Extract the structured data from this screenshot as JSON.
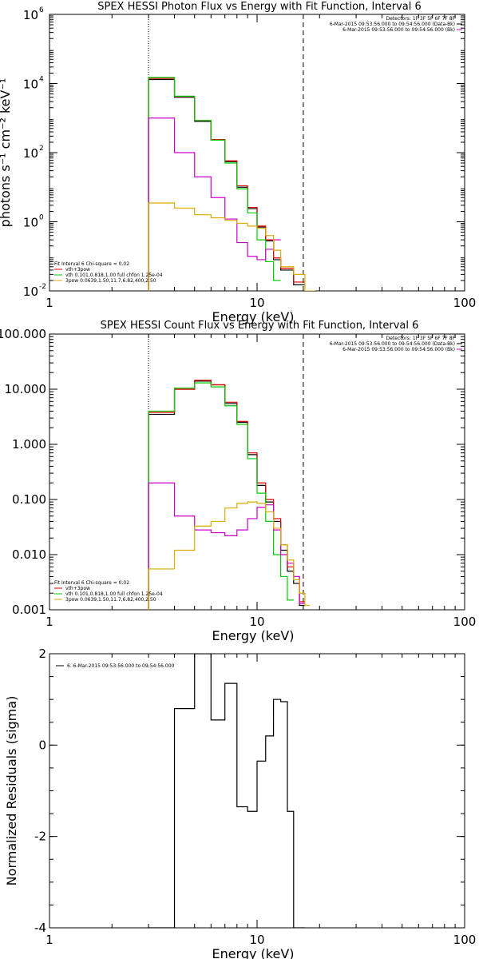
{
  "chart_data": [
    {
      "type": "line",
      "title": "SPEX HESSI Photon Flux vs Energy with Fit Function, Interval 6",
      "xlabel": "Energy (keV)",
      "ylabel": "photons s⁻¹ cm⁻² keV⁻¹",
      "xscale": "log",
      "yscale": "log",
      "xlim": [
        1,
        100
      ],
      "ylim": [
        0.01,
        1000000
      ],
      "xticks": [
        "1",
        "10",
        "100"
      ],
      "yticks": [
        {
          "value": 0.01,
          "base": "10",
          "exp": "-2"
        },
        {
          "value": 1,
          "base": "10",
          "exp": "0"
        },
        {
          "value": 100,
          "base": "10",
          "exp": "2"
        },
        {
          "value": 10000,
          "base": "10",
          "exp": "4"
        },
        {
          "value": 1000000,
          "base": "10",
          "exp": "6"
        }
      ],
      "vlines": [
        {
          "x": 3.0,
          "style": "dotted"
        },
        {
          "x": 16.7,
          "style": "dashed"
        }
      ],
      "legend_top_right": [
        {
          "text": "Detectors: 1F 3F 5F 6F 7F 8F",
          "color": ""
        },
        {
          "text": "6-Mar-2015 09:53:56.000 to 09:54:56.000 (Data-Bk)",
          "color": "#000000"
        },
        {
          "text": "6-Mar-2015 09:53:56.000 to 09:54:56.000 (Bk)",
          "color": "#cc00cc"
        }
      ],
      "legend_bottom_left": [
        {
          "text": "Fit Interval 6   Chi-square = 0.02",
          "color": ""
        },
        {
          "text": "vth+3pow",
          "color": "#dd0000"
        },
        {
          "text": "vth 0.101,0.818,1.00  full chfon 1.25e-04",
          "color": "#00cc00"
        },
        {
          "text": "3pow 0.0639,1.50,11.7,6.82,400,2.50",
          "color": "#ddaa00"
        }
      ],
      "bin_edges": [
        3.0,
        3.5,
        4.0,
        4.5,
        5.0,
        5.5,
        6.0,
        6.5,
        7.0,
        7.5,
        8.0,
        8.5,
        9.0,
        9.5,
        10.0,
        10.5,
        11.0,
        11.5,
        12.0,
        12.5,
        13.0,
        14.0,
        15.0,
        16.0,
        17.0,
        18.0,
        19.0
      ],
      "series": [
        {
          "name": "6-Mar-2015 09:53:56.000 to 09:54:56.000 (Data-Bk)",
          "color": "#000000",
          "values": [
            13000,
            13000,
            4000,
            4000,
            800,
            800,
            230,
            230,
            55,
            55,
            10,
            10,
            2.4,
            2.4,
            0.7,
            0.7,
            0.28,
            0.28,
            0.08,
            0.08,
            0.04,
            0.04,
            0.015,
            0.015,
            null,
            null
          ]
        },
        {
          "name": "vth+3pow",
          "color": "#dd0000",
          "values": [
            14000,
            14000,
            4200,
            4200,
            850,
            850,
            240,
            240,
            58,
            58,
            11,
            11,
            2.6,
            2.6,
            0.75,
            0.75,
            0.3,
            0.3,
            0.09,
            0.09,
            0.045,
            0.045,
            0.018,
            0.018,
            null,
            null
          ]
        },
        {
          "name": "vth 0.101,0.818,1.00  full chfon 1.25e-04",
          "color": "#00cc00",
          "values": [
            15000,
            15000,
            4300,
            4300,
            850,
            850,
            230,
            230,
            50,
            50,
            9,
            9,
            1.8,
            1.8,
            0.3,
            0.3,
            0.07,
            0.07,
            0.02,
            0.02,
            null,
            null,
            null,
            null,
            null,
            null
          ]
        },
        {
          "name": "(Bk)",
          "color": "#cc00cc",
          "values": [
            1000,
            1000,
            100,
            100,
            20,
            20,
            5,
            5,
            1.2,
            1.2,
            0.25,
            0.25,
            0.1,
            0.1,
            0.08,
            0.08,
            0.16,
            0.16,
            0.3,
            0.3,
            null,
            null,
            null,
            null,
            null,
            null
          ]
        },
        {
          "name": "3pow 0.0639,1.50,11.7,6.82,400,2.50",
          "color": "#ddaa00",
          "values": [
            3.5,
            3.5,
            2.5,
            2.5,
            1.6,
            1.6,
            1.3,
            1.3,
            1.1,
            1.1,
            0.9,
            0.9,
            0.75,
            0.75,
            0.65,
            0.65,
            0.4,
            0.4,
            0.15,
            0.15,
            0.05,
            0.05,
            0.03,
            0.03,
            0.01,
            0.01
          ]
        }
      ]
    },
    {
      "type": "line",
      "title": "SPEX HESSI Count Flux vs Energy with Fit Function, Interval 6",
      "xlabel": "Energy (keV)",
      "ylabel": "",
      "xscale": "log",
      "yscale": "log",
      "xlim": [
        1,
        100
      ],
      "ylim": [
        0.001,
        100
      ],
      "xticks": [
        "1",
        "10",
        "100"
      ],
      "yticks": [
        {
          "value": 0.001,
          "label": "0.001"
        },
        {
          "value": 0.01,
          "label": "0.010"
        },
        {
          "value": 0.1,
          "label": "0.100"
        },
        {
          "value": 1,
          "label": "1.000"
        },
        {
          "value": 10,
          "label": "10.000"
        },
        {
          "value": 100,
          "label": "100.000"
        }
      ],
      "vlines": [
        {
          "x": 3.0,
          "style": "dotted"
        },
        {
          "x": 16.7,
          "style": "dashed"
        }
      ],
      "legend_top_right": [
        {
          "text": "Detectors: 1F 3F 5F 6F 7F 8F",
          "color": ""
        },
        {
          "text": "6-Mar-2015 09:53:56.000 to 09:54:56.000 (Data-Bk)",
          "color": "#000000"
        },
        {
          "text": "6-Mar-2015 09:53:56.000 to 09:54:56.000 (Bk)",
          "color": "#cc00cc"
        }
      ],
      "legend_bottom_left": [
        {
          "text": "Fit Interval 6   Chi-square = 0.02",
          "color": ""
        },
        {
          "text": "vth+3pow",
          "color": "#dd0000"
        },
        {
          "text": "vth 0.101,0.818,1.00  full chfon 1.25e-04",
          "color": "#00cc00"
        },
        {
          "text": "3pow 0.0639,1.50,11.7,6.82,400,2.50",
          "color": "#ddaa00"
        }
      ],
      "bin_edges": [
        3.0,
        4.0,
        5.0,
        6.0,
        7.0,
        8.0,
        9.0,
        10.0,
        11.0,
        12.0,
        13.0,
        14.0,
        15.0,
        16.0,
        17.0,
        18.0
      ],
      "series": [
        {
          "name": "6-Mar-2015 09:53:56.000 to 09:54:56.000 (Data-Bk)",
          "color": "#000000",
          "values": [
            3.5,
            10,
            14,
            12,
            5.5,
            2.5,
            0.65,
            0.18,
            0.09,
            0.04,
            0.012,
            0.005,
            0.003,
            0.0012,
            null
          ]
        },
        {
          "name": "vth+3pow",
          "color": "#dd0000",
          "values": [
            3.8,
            10,
            14.5,
            12,
            5.8,
            2.6,
            0.7,
            0.2,
            0.1,
            0.045,
            0.015,
            0.006,
            0.004,
            0.0014,
            null
          ]
        },
        {
          "name": "vth 0.101,0.818,1.00  full chfon 1.25e-04",
          "color": "#00cc00",
          "values": [
            4,
            10.5,
            13,
            11,
            5,
            2.3,
            0.55,
            0.13,
            0.04,
            0.01,
            0.004,
            0.0015,
            null,
            null,
            null
          ]
        },
        {
          "name": "(Bk)",
          "color": "#cc00cc",
          "values": [
            0.2,
            0.05,
            0.028,
            0.025,
            0.022,
            0.028,
            0.045,
            0.072,
            0.08,
            0.028,
            0.01,
            0.007,
            0.004,
            0.0013,
            null
          ]
        },
        {
          "name": "3pow 0.0639,1.50,11.7,6.82,400,2.50",
          "color": "#ddaa00",
          "values": [
            0.0055,
            0.012,
            0.033,
            0.04,
            0.07,
            0.085,
            0.09,
            0.085,
            0.06,
            0.03,
            0.015,
            0.008,
            0.0035,
            0.002,
            0.0012
          ]
        }
      ]
    },
    {
      "type": "line",
      "title": "",
      "xlabel": "Energy (keV)",
      "ylabel": "Normalized Residuals (sigma)",
      "xscale": "log",
      "yscale": "linear",
      "xlim": [
        1,
        100
      ],
      "ylim": [
        -4,
        2
      ],
      "xticks": [
        "1",
        "10",
        "100"
      ],
      "yticks": [
        {
          "value": -4,
          "label": "-4"
        },
        {
          "value": -2,
          "label": "-2"
        },
        {
          "value": 0,
          "label": "0"
        },
        {
          "value": 2,
          "label": "2"
        }
      ],
      "legend_top_left": [
        {
          "text": "6.  6-Mar-2015 09:53:56.000 to 09:54:56.000",
          "color": "#000000"
        }
      ],
      "bin_edges": [
        3.0,
        4.0,
        5.0,
        6.0,
        7.0,
        8.0,
        9.0,
        10.0,
        11.0,
        12.0,
        13.0,
        14.0,
        15.0,
        16.0,
        17.0
      ],
      "series": [
        {
          "name": "6.  6-Mar-2015 09:53:56.000 to 09:54:56.000",
          "color": "#000000",
          "values": [
            -4.0,
            0.8,
            2.0,
            0.55,
            1.35,
            -1.35,
            -1.45,
            -0.35,
            0.2,
            1.0,
            0.95,
            -1.45,
            -4.0,
            -4.0
          ]
        }
      ]
    }
  ]
}
